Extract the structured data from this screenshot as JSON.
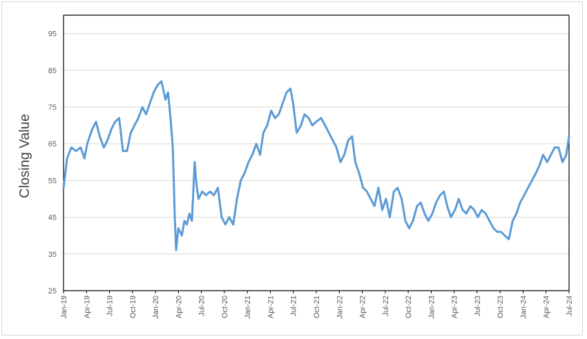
{
  "chart_data": {
    "type": "line",
    "title": "",
    "xlabel": "",
    "ylabel": "Closing Value",
    "ylim": [
      25,
      100
    ],
    "yticks": [
      25,
      35,
      45,
      55,
      65,
      75,
      85,
      95
    ],
    "grid": true,
    "legend": "none",
    "line_color": "#5b9bd5",
    "x_tick_labels": [
      "Jan-19",
      "Apr-19",
      "Jul-19",
      "Oct-19",
      "Jan-20",
      "Apr-20",
      "Jul-20",
      "Oct-20",
      "Jan-21",
      "Apr-21",
      "Jul-21",
      "Oct-21",
      "Jan-22",
      "Apr-22",
      "Jul-22",
      "Oct-22",
      "Jan-23",
      "Apr-23",
      "Jul-23",
      "Oct-23",
      "Jan-24",
      "Apr-24",
      "Jul-24"
    ],
    "series": [
      {
        "values": [
          {
            "x": "2019-01-01",
            "y": 53
          },
          {
            "x": "2019-01-15",
            "y": 61
          },
          {
            "x": "2019-02-01",
            "y": 64
          },
          {
            "x": "2019-02-20",
            "y": 63
          },
          {
            "x": "2019-03-10",
            "y": 64
          },
          {
            "x": "2019-03-25",
            "y": 61
          },
          {
            "x": "2019-04-05",
            "y": 65
          },
          {
            "x": "2019-04-25",
            "y": 69
          },
          {
            "x": "2019-05-10",
            "y": 71
          },
          {
            "x": "2019-05-25",
            "y": 67
          },
          {
            "x": "2019-06-10",
            "y": 64
          },
          {
            "x": "2019-06-25",
            "y": 66
          },
          {
            "x": "2019-07-10",
            "y": 69
          },
          {
            "x": "2019-07-25",
            "y": 71
          },
          {
            "x": "2019-08-10",
            "y": 72
          },
          {
            "x": "2019-08-25",
            "y": 63
          },
          {
            "x": "2019-09-10",
            "y": 63
          },
          {
            "x": "2019-09-25",
            "y": 68
          },
          {
            "x": "2019-10-10",
            "y": 70
          },
          {
            "x": "2019-10-25",
            "y": 72
          },
          {
            "x": "2019-11-10",
            "y": 75
          },
          {
            "x": "2019-11-25",
            "y": 73
          },
          {
            "x": "2019-12-10",
            "y": 76
          },
          {
            "x": "2019-12-25",
            "y": 79
          },
          {
            "x": "2020-01-10",
            "y": 81
          },
          {
            "x": "2020-01-25",
            "y": 82
          },
          {
            "x": "2020-02-10",
            "y": 77
          },
          {
            "x": "2020-02-20",
            "y": 79
          },
          {
            "x": "2020-03-01",
            "y": 72
          },
          {
            "x": "2020-03-10",
            "y": 64
          },
          {
            "x": "2020-03-18",
            "y": 45
          },
          {
            "x": "2020-03-23",
            "y": 36
          },
          {
            "x": "2020-04-01",
            "y": 42
          },
          {
            "x": "2020-04-15",
            "y": 40
          },
          {
            "x": "2020-04-25",
            "y": 44
          },
          {
            "x": "2020-05-05",
            "y": 43
          },
          {
            "x": "2020-05-15",
            "y": 46
          },
          {
            "x": "2020-05-25",
            "y": 44
          },
          {
            "x": "2020-06-05",
            "y": 60
          },
          {
            "x": "2020-06-12",
            "y": 54
          },
          {
            "x": "2020-06-20",
            "y": 50
          },
          {
            "x": "2020-07-05",
            "y": 52
          },
          {
            "x": "2020-07-20",
            "y": 51
          },
          {
            "x": "2020-08-05",
            "y": 52
          },
          {
            "x": "2020-08-20",
            "y": 51
          },
          {
            "x": "2020-09-05",
            "y": 53
          },
          {
            "x": "2020-09-20",
            "y": 45
          },
          {
            "x": "2020-10-05",
            "y": 43
          },
          {
            "x": "2020-10-20",
            "y": 45
          },
          {
            "x": "2020-11-05",
            "y": 43
          },
          {
            "x": "2020-11-20",
            "y": 50
          },
          {
            "x": "2020-12-05",
            "y": 55
          },
          {
            "x": "2020-12-20",
            "y": 57
          },
          {
            "x": "2021-01-05",
            "y": 60
          },
          {
            "x": "2021-01-20",
            "y": 62
          },
          {
            "x": "2021-02-05",
            "y": 65
          },
          {
            "x": "2021-02-20",
            "y": 62
          },
          {
            "x": "2021-03-05",
            "y": 68
          },
          {
            "x": "2021-03-20",
            "y": 70
          },
          {
            "x": "2021-04-05",
            "y": 74
          },
          {
            "x": "2021-04-20",
            "y": 72
          },
          {
            "x": "2021-05-05",
            "y": 73
          },
          {
            "x": "2021-05-20",
            "y": 76
          },
          {
            "x": "2021-06-05",
            "y": 79
          },
          {
            "x": "2021-06-20",
            "y": 80
          },
          {
            "x": "2021-07-01",
            "y": 76
          },
          {
            "x": "2021-07-15",
            "y": 68
          },
          {
            "x": "2021-08-01",
            "y": 70
          },
          {
            "x": "2021-08-15",
            "y": 73
          },
          {
            "x": "2021-09-01",
            "y": 72
          },
          {
            "x": "2021-09-15",
            "y": 70
          },
          {
            "x": "2021-10-01",
            "y": 71
          },
          {
            "x": "2021-10-20",
            "y": 72
          },
          {
            "x": "2021-11-05",
            "y": 70
          },
          {
            "x": "2021-11-20",
            "y": 68
          },
          {
            "x": "2021-12-05",
            "y": 66
          },
          {
            "x": "2021-12-20",
            "y": 64
          },
          {
            "x": "2022-01-05",
            "y": 60
          },
          {
            "x": "2022-01-20",
            "y": 62
          },
          {
            "x": "2022-02-05",
            "y": 66
          },
          {
            "x": "2022-02-20",
            "y": 67
          },
          {
            "x": "2022-03-05",
            "y": 60
          },
          {
            "x": "2022-03-20",
            "y": 57
          },
          {
            "x": "2022-04-05",
            "y": 53
          },
          {
            "x": "2022-04-20",
            "y": 52
          },
          {
            "x": "2022-05-05",
            "y": 50
          },
          {
            "x": "2022-05-20",
            "y": 48
          },
          {
            "x": "2022-06-05",
            "y": 53
          },
          {
            "x": "2022-06-20",
            "y": 47
          },
          {
            "x": "2022-07-05",
            "y": 50
          },
          {
            "x": "2022-07-20",
            "y": 45
          },
          {
            "x": "2022-08-05",
            "y": 52
          },
          {
            "x": "2022-08-20",
            "y": 53
          },
          {
            "x": "2022-09-05",
            "y": 50
          },
          {
            "x": "2022-09-20",
            "y": 44
          },
          {
            "x": "2022-10-05",
            "y": 42
          },
          {
            "x": "2022-10-20",
            "y": 44
          },
          {
            "x": "2022-11-05",
            "y": 48
          },
          {
            "x": "2022-11-20",
            "y": 49
          },
          {
            "x": "2022-12-05",
            "y": 46
          },
          {
            "x": "2022-12-20",
            "y": 44
          },
          {
            "x": "2023-01-05",
            "y": 46
          },
          {
            "x": "2023-01-20",
            "y": 49
          },
          {
            "x": "2023-02-05",
            "y": 51
          },
          {
            "x": "2023-02-20",
            "y": 52
          },
          {
            "x": "2023-03-05",
            "y": 48
          },
          {
            "x": "2023-03-20",
            "y": 45
          },
          {
            "x": "2023-04-05",
            "y": 47
          },
          {
            "x": "2023-04-20",
            "y": 50
          },
          {
            "x": "2023-05-05",
            "y": 47
          },
          {
            "x": "2023-05-20",
            "y": 46
          },
          {
            "x": "2023-06-05",
            "y": 48
          },
          {
            "x": "2023-06-20",
            "y": 47
          },
          {
            "x": "2023-07-05",
            "y": 45
          },
          {
            "x": "2023-07-20",
            "y": 47
          },
          {
            "x": "2023-08-05",
            "y": 46
          },
          {
            "x": "2023-08-20",
            "y": 44
          },
          {
            "x": "2023-09-05",
            "y": 42
          },
          {
            "x": "2023-09-20",
            "y": 41
          },
          {
            "x": "2023-10-05",
            "y": 41
          },
          {
            "x": "2023-10-20",
            "y": 40
          },
          {
            "x": "2023-11-05",
            "y": 39
          },
          {
            "x": "2023-11-20",
            "y": 44
          },
          {
            "x": "2023-12-05",
            "y": 46
          },
          {
            "x": "2023-12-20",
            "y": 49
          },
          {
            "x": "2024-01-05",
            "y": 51
          },
          {
            "x": "2024-01-20",
            "y": 53
          },
          {
            "x": "2024-02-05",
            "y": 55
          },
          {
            "x": "2024-02-20",
            "y": 57
          },
          {
            "x": "2024-03-05",
            "y": 59
          },
          {
            "x": "2024-03-20",
            "y": 62
          },
          {
            "x": "2024-04-05",
            "y": 60
          },
          {
            "x": "2024-04-20",
            "y": 62
          },
          {
            "x": "2024-05-05",
            "y": 64
          },
          {
            "x": "2024-05-20",
            "y": 64
          },
          {
            "x": "2024-06-05",
            "y": 60
          },
          {
            "x": "2024-06-20",
            "y": 62
          },
          {
            "x": "2024-07-01",
            "y": 67
          }
        ]
      }
    ]
  }
}
